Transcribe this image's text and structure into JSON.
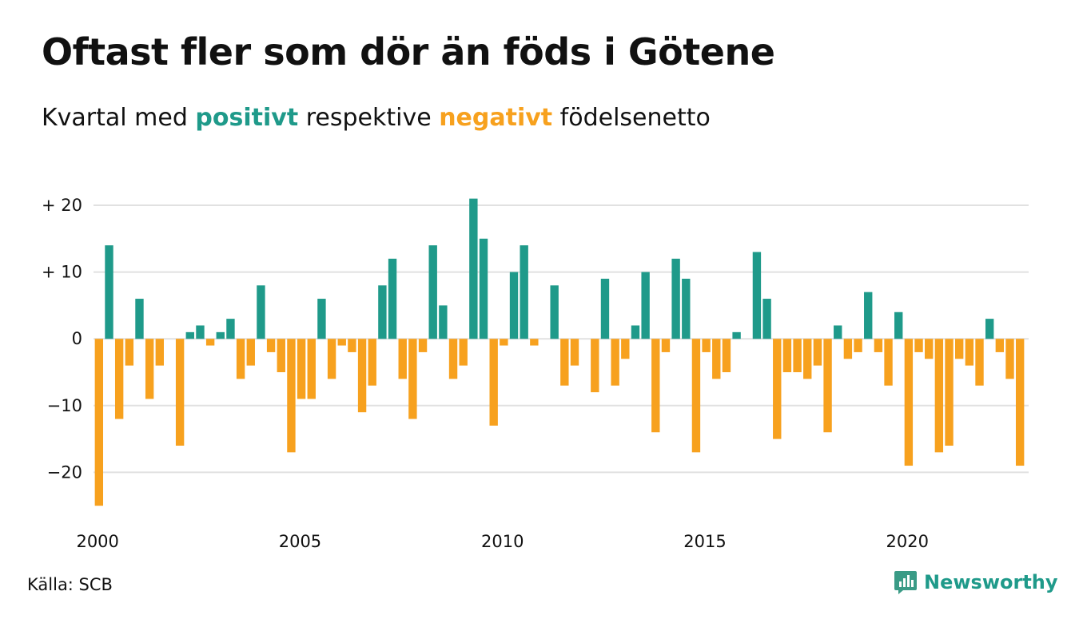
{
  "title": "Oftast fler som dör än föds i Götene",
  "subtitle": {
    "prefix": "Kvartal med ",
    "positive_word": "positivt",
    "middle": " respektive ",
    "negative_word": "negativt",
    "suffix": " födelsenetto"
  },
  "source": "Källa: SCB",
  "logo": {
    "text": "Newsworthy",
    "icon": "chart-bubble-icon"
  },
  "colors": {
    "positive": "#1f9a8a",
    "negative": "#f7a11e",
    "grid": "#e1e1e1",
    "text": "#111111"
  },
  "chart_data": {
    "type": "bar",
    "x_start": 2000,
    "periods_per_year": 4,
    "ylim": [
      -27,
      23
    ],
    "y_ticks": [
      {
        "value": 20,
        "label": "+ 20"
      },
      {
        "value": 10,
        "label": "+ 10"
      },
      {
        "value": 0,
        "label": "0"
      },
      {
        "value": -10,
        "label": "−10"
      },
      {
        "value": -20,
        "label": "−20"
      }
    ],
    "x_ticks": [
      {
        "value": 2000,
        "label": "2000"
      },
      {
        "value": 2005,
        "label": "2005"
      },
      {
        "value": 2010,
        "label": "2010"
      },
      {
        "value": 2015,
        "label": "2015"
      },
      {
        "value": 2020,
        "label": "2020"
      }
    ],
    "values": [
      -25,
      14,
      -12,
      -4,
      6,
      -9,
      -4,
      0,
      -16,
      1,
      2,
      -1,
      1,
      3,
      -6,
      -4,
      8,
      -2,
      -5,
      -17,
      -9,
      -9,
      6,
      -6,
      -1,
      -2,
      -11,
      -7,
      8,
      12,
      -6,
      -12,
      -2,
      14,
      5,
      -6,
      -4,
      21,
      15,
      -13,
      -1,
      10,
      14,
      -1,
      0,
      8,
      -7,
      -4,
      0,
      -8,
      9,
      -7,
      -3,
      2,
      10,
      -14,
      -2,
      12,
      9,
      -17,
      -2,
      -6,
      -5,
      1,
      0,
      13,
      6,
      -15,
      -5,
      -5,
      -6,
      -4,
      -14,
      2,
      -3,
      -2,
      7,
      -2,
      -7,
      4,
      -19,
      -2,
      -3,
      -17,
      -16,
      -3,
      -4,
      -7,
      3,
      -2,
      -6,
      -19
    ]
  }
}
